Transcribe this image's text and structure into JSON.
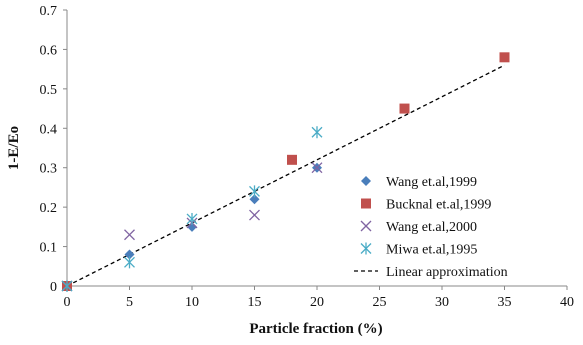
{
  "chart_data": {
    "type": "scatter",
    "xlabel": "Particle fraction (%)",
    "ylabel": "1-E/Eo",
    "xlim": [
      0,
      40
    ],
    "ylim": [
      0,
      0.7
    ],
    "x_ticks": [
      0,
      5,
      10,
      15,
      20,
      25,
      30,
      35,
      40
    ],
    "y_ticks": [
      0,
      0.1,
      0.2,
      0.3,
      0.4,
      0.5,
      0.6,
      0.7
    ],
    "grid": false,
    "legend_position": "right",
    "series": [
      {
        "name": "Wang et.al,1999",
        "marker": "diamond",
        "color": "#4a7ebb",
        "points": [
          [
            0,
            0.0
          ],
          [
            5,
            0.08
          ],
          [
            10,
            0.15
          ],
          [
            15,
            0.22
          ],
          [
            20,
            0.3
          ]
        ]
      },
      {
        "name": "Bucknal et.al,1999",
        "marker": "square",
        "color": "#c0504d",
        "points": [
          [
            0,
            0.0
          ],
          [
            18,
            0.32
          ],
          [
            27,
            0.45
          ],
          [
            35,
            0.58
          ]
        ]
      },
      {
        "name": "Wang et.al,2000",
        "marker": "x",
        "color": "#8064a2",
        "points": [
          [
            0,
            0.0
          ],
          [
            5,
            0.13
          ],
          [
            10,
            0.16
          ],
          [
            15,
            0.18
          ],
          [
            20,
            0.3
          ]
        ]
      },
      {
        "name": "Miwa et.al,1995",
        "marker": "asterisk",
        "color": "#4bacc6",
        "points": [
          [
            0,
            0.0
          ],
          [
            5,
            0.06
          ],
          [
            10,
            0.17
          ],
          [
            15,
            0.24
          ],
          [
            20,
            0.39
          ]
        ]
      },
      {
        "name": "Linear approximation",
        "marker": "dashed-line",
        "color": "#000000",
        "points": [
          [
            0,
            0.0
          ],
          [
            35,
            0.56
          ]
        ]
      }
    ]
  }
}
